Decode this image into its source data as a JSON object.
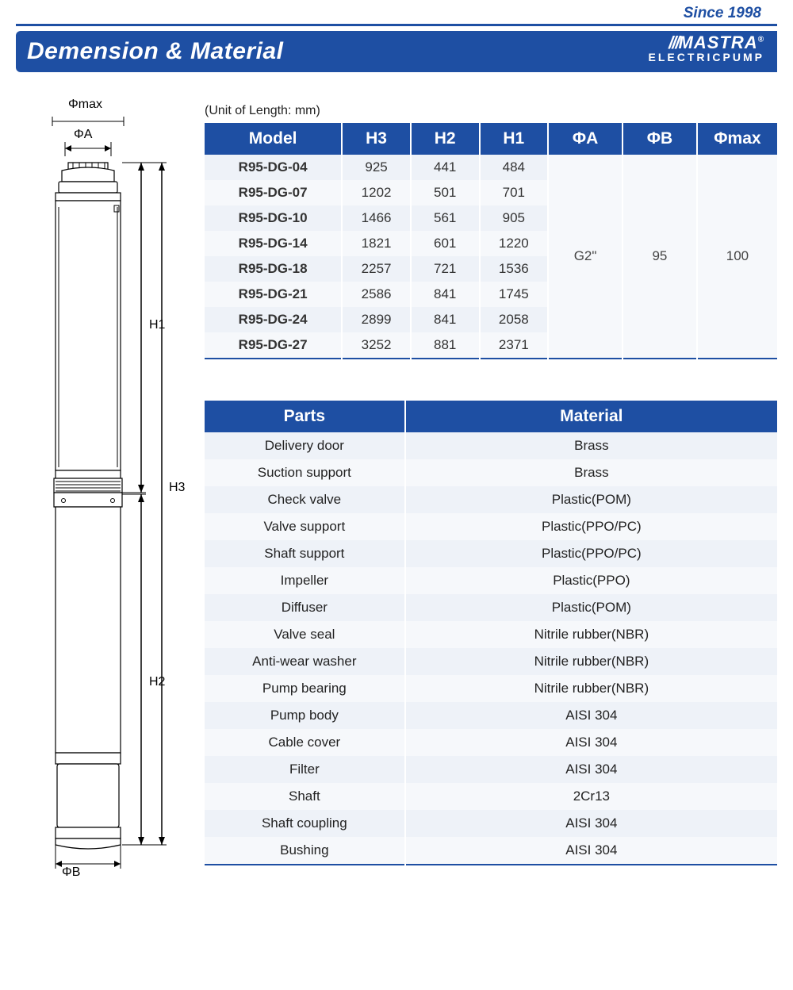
{
  "header": {
    "since": "Since 1998",
    "title": "Demension & Material",
    "brand": "MASTRA",
    "brand_sub": "ELECTRICPUMP"
  },
  "unit_note": "(Unit of Length: mm)",
  "spec_table": {
    "columns": [
      "Model",
      "H3",
      "H2",
      "H1",
      "ΦA",
      "ΦB",
      "Φmax"
    ],
    "col_widths_pct": [
      24,
      12,
      12,
      12,
      13,
      13,
      14
    ],
    "rows": [
      [
        "R95-DG-04",
        "925",
        "441",
        "484"
      ],
      [
        "R95-DG-07",
        "1202",
        "501",
        "701"
      ],
      [
        "R95-DG-10",
        "1466",
        "561",
        "905"
      ],
      [
        "R95-DG-14",
        "1821",
        "601",
        "1220"
      ],
      [
        "R95-DG-18",
        "2257",
        "721",
        "1536"
      ],
      [
        "R95-DG-21",
        "2586",
        "841",
        "1745"
      ],
      [
        "R95-DG-24",
        "2899",
        "841",
        "2058"
      ],
      [
        "R95-DG-27",
        "3252",
        "881",
        "2371"
      ]
    ],
    "merged": {
      "phiA": "G2\"",
      "phiB": "95",
      "phimax": "100"
    }
  },
  "material_table": {
    "columns": [
      "Parts",
      "Material"
    ],
    "col_widths_pct": [
      35,
      65
    ],
    "rows": [
      [
        "Delivery door",
        "Brass"
      ],
      [
        "Suction support",
        "Brass"
      ],
      [
        "Check valve",
        "Plastic(POM)"
      ],
      [
        "Valve support",
        "Plastic(PPO/PC)"
      ],
      [
        "Shaft support",
        "Plastic(PPO/PC)"
      ],
      [
        "Impeller",
        "Plastic(PPO)"
      ],
      [
        "Diffuser",
        "Plastic(POM)"
      ],
      [
        "Valve seal",
        "Nitrile rubber(NBR)"
      ],
      [
        "Anti-wear washer",
        "Nitrile rubber(NBR)"
      ],
      [
        "Pump bearing",
        "Nitrile rubber(NBR)"
      ],
      [
        "Pump body",
        "AISI 304"
      ],
      [
        "Cable cover",
        "AISI 304"
      ],
      [
        "Filter",
        "AISI 304"
      ],
      [
        "Shaft",
        "2Cr13"
      ],
      [
        "Shaft coupling",
        "AISI 304"
      ],
      [
        "Bushing",
        "AISI 304"
      ]
    ]
  },
  "diagram_labels": {
    "phimax": "Φmax",
    "phiA": "ΦA",
    "phiB": "ΦB",
    "H1": "H1",
    "H2": "H2",
    "H3": "H3"
  },
  "colors": {
    "brand_blue": "#1e4fa3",
    "row_even": "#eef2f8",
    "row_odd": "#f6f8fb",
    "white": "#ffffff",
    "black": "#000000"
  }
}
